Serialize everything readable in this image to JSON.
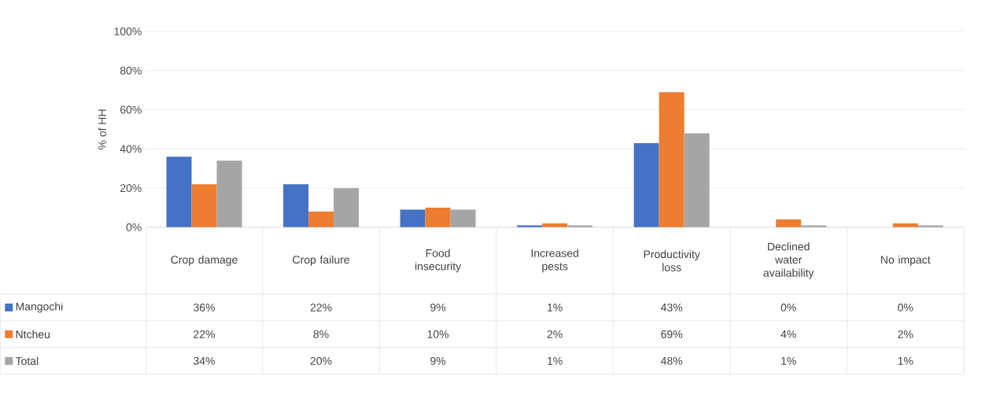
{
  "chart_data": {
    "type": "bar",
    "ylabel": "% of HH",
    "categories": [
      "Crop damage",
      "Crop failure",
      "Food insecurity",
      "Increased pests",
      "Productivity loss",
      "Declined water availability",
      "No impact"
    ],
    "ylim": [
      0,
      100
    ],
    "yticks": [
      {
        "value": 0,
        "label": "0%"
      },
      {
        "value": 20,
        "label": "20%"
      },
      {
        "value": 40,
        "label": "40%"
      },
      {
        "value": 60,
        "label": "60%"
      },
      {
        "value": 80,
        "label": "80%"
      },
      {
        "value": 100,
        "label": "100%"
      }
    ],
    "grid": "y",
    "legend": "bottom",
    "series": [
      {
        "name": "Mangochi",
        "color": "#4472c4",
        "values": [
          36,
          22,
          9,
          1,
          43,
          0,
          0
        ],
        "value_labels": [
          "36%",
          "22%",
          "9%",
          "1%",
          "43%",
          "0%",
          "0%"
        ]
      },
      {
        "name": "Ntcheu",
        "color": "#ed7d31",
        "values": [
          22,
          8,
          10,
          2,
          69,
          4,
          2
        ],
        "value_labels": [
          "22%",
          "8%",
          "10%",
          "2%",
          "69%",
          "4%",
          "2%"
        ]
      },
      {
        "name": "Total",
        "color": "#a5a5a5",
        "values": [
          34,
          20,
          9,
          1,
          48,
          1,
          1
        ],
        "value_labels": [
          "34%",
          "20%",
          "9%",
          "1%",
          "48%",
          "1%",
          "1%"
        ]
      }
    ]
  }
}
